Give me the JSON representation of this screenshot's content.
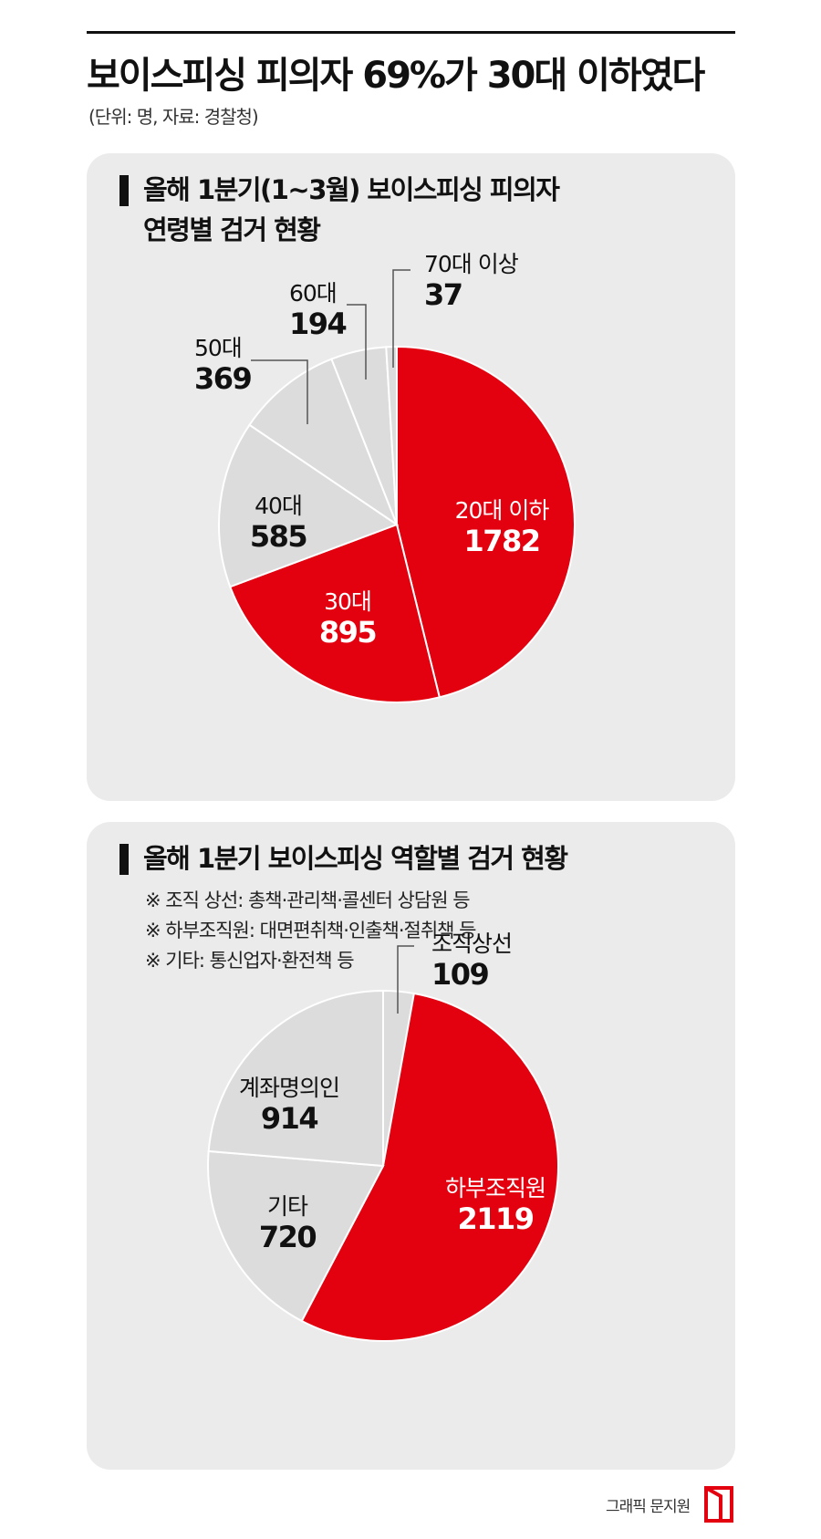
{
  "title": "보이스피싱 피의자 69%가 30대 이하였다",
  "unit_note": "(단위: 명, 자료: 경찰청)",
  "chart_data": [
    {
      "type": "pie",
      "title_lines": [
        "올해 1분기(1~3월) 보이스피싱 피의자",
        "연령별 검거 현황"
      ],
      "categories": [
        "20대 이하",
        "30대",
        "40대",
        "50대",
        "60대",
        "70대 이상"
      ],
      "values": [
        1782,
        895,
        585,
        369,
        194,
        37
      ],
      "colors": [
        "#e3000f",
        "#e3000f",
        "#dcdcdc",
        "#dcdcdc",
        "#dcdcdc",
        "#dcdcdc"
      ]
    },
    {
      "type": "pie",
      "title_lines": [
        "올해 1분기 보이스피싱 역할별 검거 현황"
      ],
      "notes": [
        "※ 조직 상선: 총책·관리책·콜센터 상담원 등",
        "※ 하부조직원: 대면편취책·인출책·절취책 등",
        "※ 기타: 통신업자·환전책 등"
      ],
      "categories": [
        "조직상선",
        "하부조직원",
        "기타",
        "계좌명의인"
      ],
      "values": [
        109,
        2119,
        720,
        914
      ],
      "colors": [
        "#dcdcdc",
        "#e3000f",
        "#dcdcdc",
        "#dcdcdc"
      ]
    }
  ],
  "credit": "그래픽 문지원",
  "accent_color": "#e3000f"
}
